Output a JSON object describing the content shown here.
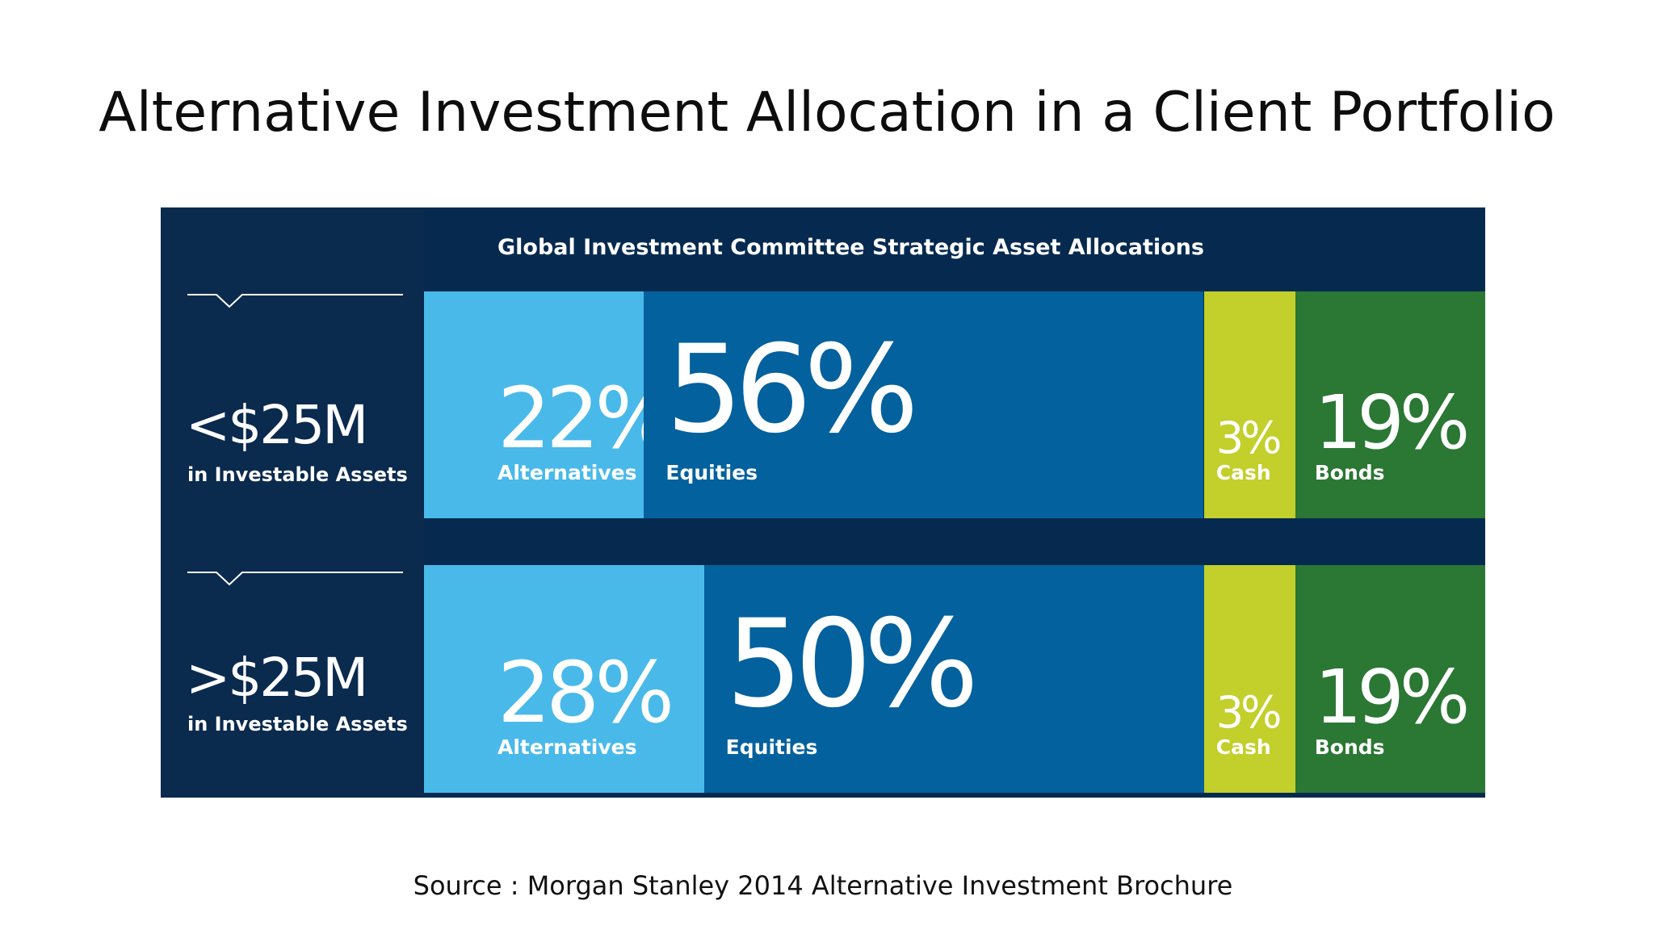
{
  "slide": {
    "title": "Alternative Investment Allocation in a Client Portfolio",
    "source": "Source : Morgan Stanley 2014 Alternative Investment Brochure"
  },
  "colors": {
    "alternatives": "#49b9ea",
    "equities": "#03619d",
    "cash": "#c3cf2a",
    "bonds": "#2b7734",
    "navy": "#0a2a4e"
  },
  "chart_data": {
    "type": "bar",
    "orientation": "horizontal-stacked-100",
    "title": "Global Investment Committee Strategic Asset Allocations",
    "categories": [
      "Alternatives",
      "Equities",
      "Cash",
      "Bonds"
    ],
    "rows": [
      {
        "tier": "<$25M",
        "sub": "in Investable Assets",
        "segments": [
          {
            "name": "Alternatives",
            "value": 22,
            "label": "22%"
          },
          {
            "name": "Equities",
            "value": 56,
            "label": "56%"
          },
          {
            "name": "Cash",
            "value": 3,
            "label": "3%"
          },
          {
            "name": "Bonds",
            "value": 19,
            "label": "19%"
          }
        ]
      },
      {
        "tier": ">$25M",
        "sub": "in Investable Assets",
        "segments": [
          {
            "name": "Alternatives",
            "value": 28,
            "label": "28%"
          },
          {
            "name": "Equities",
            "value": 50,
            "label": "50%"
          },
          {
            "name": "Cash",
            "value": 3,
            "label": "3%"
          },
          {
            "name": "Bonds",
            "value": 19,
            "label": "19%"
          }
        ]
      }
    ]
  }
}
